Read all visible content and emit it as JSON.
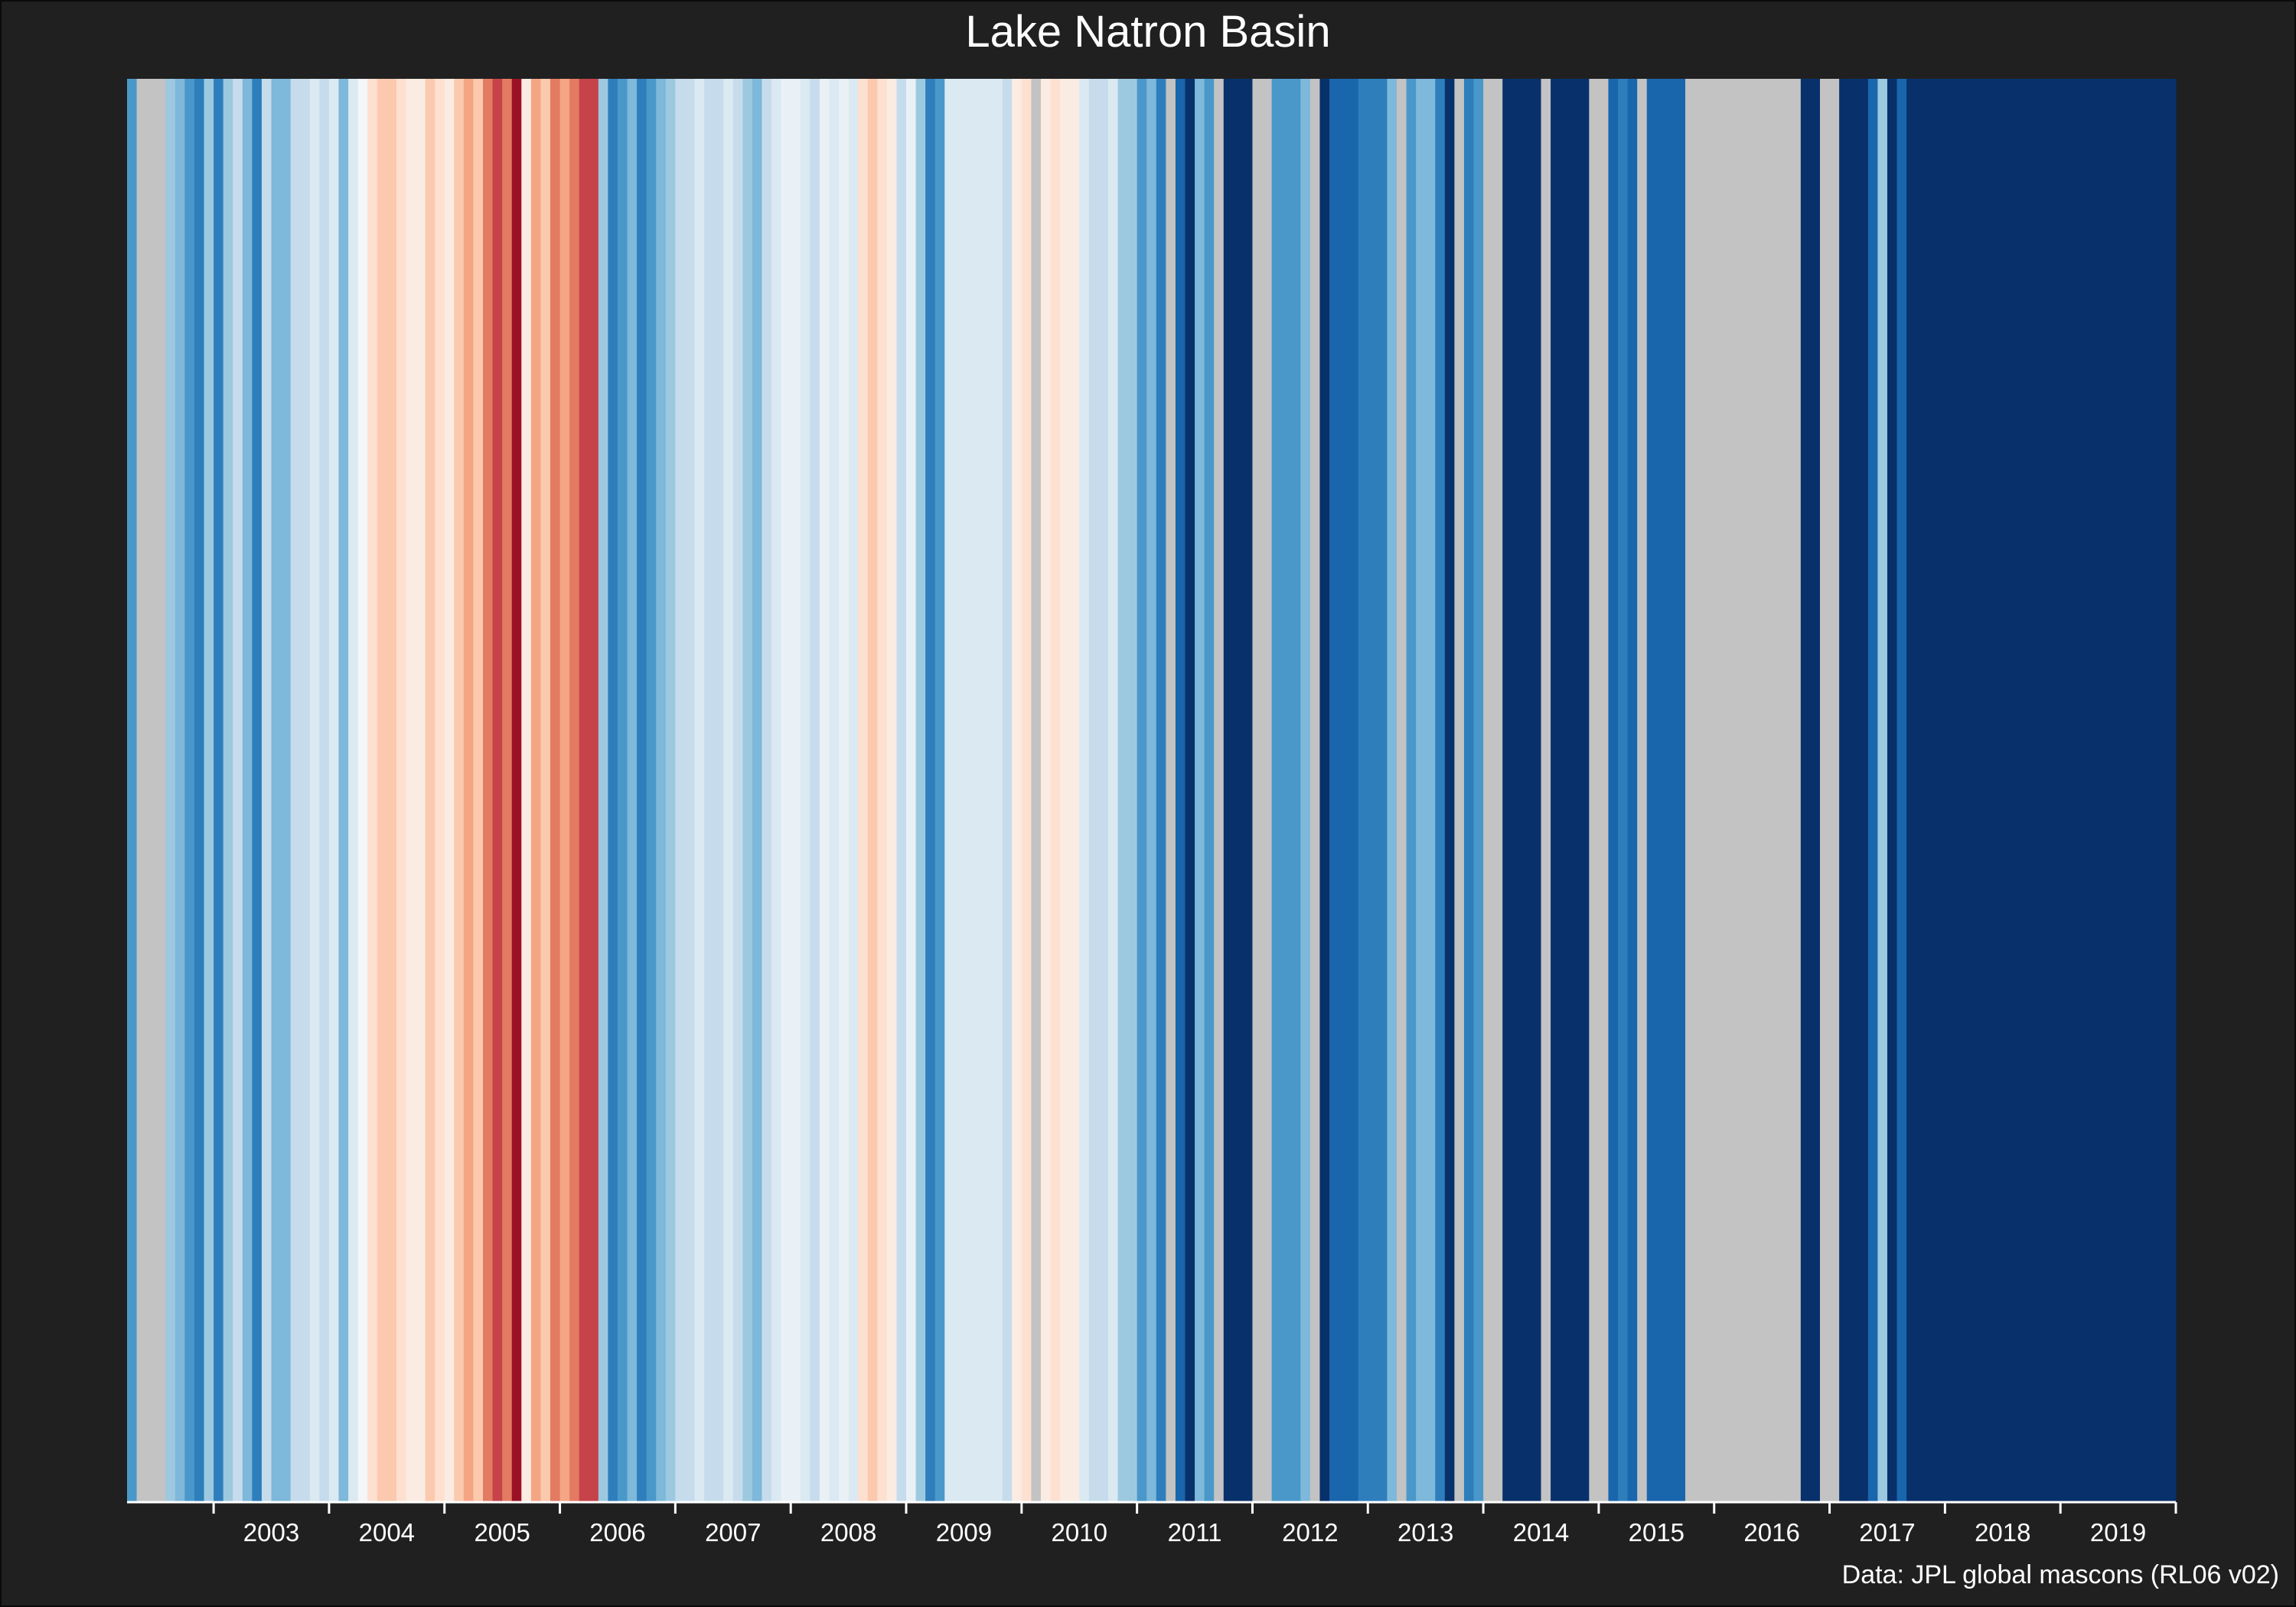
{
  "chart_data": {
    "type": "heatmap",
    "title": "Lake Natron Basin",
    "credit": "Data: JPL global mascons (RL06 v02)",
    "xlabel": "",
    "ylabel": "",
    "x_ticks": [
      "2003",
      "2004",
      "2005",
      "2006",
      "2007",
      "2008",
      "2009",
      "2010",
      "2011",
      "2012",
      "2013",
      "2014",
      "2015",
      "2016",
      "2017",
      "2018",
      "2019"
    ],
    "x_range": [
      "2002-04",
      "2020-01"
    ],
    "grid": false,
    "missing_color": "#c3c3c3",
    "stripes": [
      [
        "2002-04",
        "#4a98c9"
      ],
      [
        "2002-05",
        "#c3c3c3"
      ],
      [
        "2002-06",
        "#c3c3c3"
      ],
      [
        "2002-07",
        "#c3c3c3"
      ],
      [
        "2002-08",
        "#9dc9e0"
      ],
      [
        "2002-09",
        "#7eb8da"
      ],
      [
        "2002-10",
        "#4a98c9"
      ],
      [
        "2002-11",
        "#2e7ebc"
      ],
      [
        "2002-12",
        "#9dc9e0"
      ],
      [
        "2003-01",
        "#2e7ebc"
      ],
      [
        "2003-02",
        "#9dc9e0"
      ],
      [
        "2003-03",
        "#c6dcec"
      ],
      [
        "2003-04",
        "#7eb8da"
      ],
      [
        "2003-05",
        "#2e7ebc"
      ],
      [
        "2003-06",
        "#c6dcec"
      ],
      [
        "2003-07",
        "#7eb8da"
      ],
      [
        "2003-08",
        "#7eb8da"
      ],
      [
        "2003-09",
        "#c6dcec"
      ],
      [
        "2003-10",
        "#c6dcec"
      ],
      [
        "2003-11",
        "#dbe9f2"
      ],
      [
        "2003-12",
        "#c6dcec"
      ],
      [
        "2004-01",
        "#dbe9f2"
      ],
      [
        "2004-02",
        "#7eb8da"
      ],
      [
        "2004-03",
        "#dbe9f2"
      ],
      [
        "2004-04",
        "#f4f6f8"
      ],
      [
        "2004-05",
        "#fde0d0"
      ],
      [
        "2004-06",
        "#fbc9ae"
      ],
      [
        "2004-07",
        "#fbc9ae"
      ],
      [
        "2004-08",
        "#fde0d0"
      ],
      [
        "2004-09",
        "#fbece3"
      ],
      [
        "2004-10",
        "#fbece3"
      ],
      [
        "2004-11",
        "#fbc9ae"
      ],
      [
        "2004-12",
        "#fde0d0"
      ],
      [
        "2005-01",
        "#fbece3"
      ],
      [
        "2005-02",
        "#fbc9ae"
      ],
      [
        "2005-03",
        "#f4a684"
      ],
      [
        "2005-04",
        "#fbc9ae"
      ],
      [
        "2005-05",
        "#e37b62"
      ],
      [
        "2005-06",
        "#c6434a"
      ],
      [
        "2005-07",
        "#e37b62"
      ],
      [
        "2005-08",
        "#9a1125"
      ],
      [
        "2005-09",
        "#fbece3"
      ],
      [
        "2005-10",
        "#f4a684"
      ],
      [
        "2005-11",
        "#fbc9ae"
      ],
      [
        "2005-12",
        "#e37b62"
      ],
      [
        "2006-01",
        "#f4a684"
      ],
      [
        "2006-02",
        "#e37b62"
      ],
      [
        "2006-03",
        "#c6434a"
      ],
      [
        "2006-04",
        "#c6434a"
      ],
      [
        "2006-05",
        "#9dc9e0"
      ],
      [
        "2006-06",
        "#2e7ebc"
      ],
      [
        "2006-07",
        "#4a98c9"
      ],
      [
        "2006-08",
        "#7eb8da"
      ],
      [
        "2006-09",
        "#2e7ebc"
      ],
      [
        "2006-10",
        "#4a98c9"
      ],
      [
        "2006-11",
        "#7eb8da"
      ],
      [
        "2006-12",
        "#9dc9e0"
      ],
      [
        "2007-01",
        "#c6dcec"
      ],
      [
        "2007-02",
        "#c6dcec"
      ],
      [
        "2007-03",
        "#dbe9f2"
      ],
      [
        "2007-04",
        "#c6dcec"
      ],
      [
        "2007-05",
        "#c6dcec"
      ],
      [
        "2007-06",
        "#dbe9f2"
      ],
      [
        "2007-07",
        "#c6dcec"
      ],
      [
        "2007-08",
        "#9dc9e0"
      ],
      [
        "2007-09",
        "#7eb8da"
      ],
      [
        "2007-10",
        "#c6dcec"
      ],
      [
        "2007-11",
        "#dbe9f2"
      ],
      [
        "2007-12",
        "#eaf1f6"
      ],
      [
        "2008-01",
        "#eaf1f6"
      ],
      [
        "2008-02",
        "#dbe9f2"
      ],
      [
        "2008-03",
        "#c6dcec"
      ],
      [
        "2008-04",
        "#eaf1f6"
      ],
      [
        "2008-05",
        "#dbe9f2"
      ],
      [
        "2008-06",
        "#eaf1f6"
      ],
      [
        "2008-07",
        "#dbe9f2"
      ],
      [
        "2008-08",
        "#fde0d0"
      ],
      [
        "2008-09",
        "#fbc9ae"
      ],
      [
        "2008-10",
        "#fde0d0"
      ],
      [
        "2008-11",
        "#fbece3"
      ],
      [
        "2008-12",
        "#c6dcec"
      ],
      [
        "2009-01",
        "#eaf1f6"
      ],
      [
        "2009-02",
        "#9dc9e0"
      ],
      [
        "2009-03",
        "#2e7ebc"
      ],
      [
        "2009-04",
        "#4a98c9"
      ],
      [
        "2009-05",
        "#dbe9f2"
      ],
      [
        "2009-06",
        "#dbe9f2"
      ],
      [
        "2009-07",
        "#dbe9f2"
      ],
      [
        "2009-08",
        "#dbe9f2"
      ],
      [
        "2009-09",
        "#dbe9f2"
      ],
      [
        "2009-10",
        "#dbe9f2"
      ],
      [
        "2009-11",
        "#c6dcec"
      ],
      [
        "2009-12",
        "#fbece3"
      ],
      [
        "2010-01",
        "#fde0d0"
      ],
      [
        "2010-02",
        "#c3c3c3"
      ],
      [
        "2010-03",
        "#fbece3"
      ],
      [
        "2010-04",
        "#fde0d0"
      ],
      [
        "2010-05",
        "#fbece3"
      ],
      [
        "2010-06",
        "#fbece3"
      ],
      [
        "2010-07",
        "#dbe9f2"
      ],
      [
        "2010-08",
        "#c6dcec"
      ],
      [
        "2010-09",
        "#c6dcec"
      ],
      [
        "2010-10",
        "#dbe9f2"
      ],
      [
        "2010-11",
        "#9dc9e0"
      ],
      [
        "2010-12",
        "#9dc9e0"
      ],
      [
        "2011-01",
        "#4a98c9"
      ],
      [
        "2011-02",
        "#7eb8da"
      ],
      [
        "2011-03",
        "#2e7ebc"
      ],
      [
        "2011-04",
        "#c3c3c3"
      ],
      [
        "2011-05",
        "#1966ad"
      ],
      [
        "2011-06",
        "#08306b"
      ],
      [
        "2011-07",
        "#7eb8da"
      ],
      [
        "2011-08",
        "#4a98c9"
      ],
      [
        "2011-09",
        "#c3c3c3"
      ],
      [
        "2011-10",
        "#08306b"
      ],
      [
        "2011-11",
        "#08306b"
      ],
      [
        "2011-12",
        "#08306b"
      ],
      [
        "2012-01",
        "#c3c3c3"
      ],
      [
        "2012-02",
        "#c3c3c3"
      ],
      [
        "2012-03",
        "#4a98c9"
      ],
      [
        "2012-04",
        "#4a98c9"
      ],
      [
        "2012-05",
        "#4a98c9"
      ],
      [
        "2012-06",
        "#7eb8da"
      ],
      [
        "2012-07",
        "#c3c3c3"
      ],
      [
        "2012-08",
        "#08306b"
      ],
      [
        "2012-09",
        "#1966ad"
      ],
      [
        "2012-10",
        "#1966ad"
      ],
      [
        "2012-11",
        "#1966ad"
      ],
      [
        "2012-12",
        "#2e7ebc"
      ],
      [
        "2013-01",
        "#2e7ebc"
      ],
      [
        "2013-02",
        "#2e7ebc"
      ],
      [
        "2013-03",
        "#7eb8da"
      ],
      [
        "2013-04",
        "#c3c3c3"
      ],
      [
        "2013-05",
        "#4a98c9"
      ],
      [
        "2013-06",
        "#7eb8da"
      ],
      [
        "2013-07",
        "#7eb8da"
      ],
      [
        "2013-08",
        "#2e7ebc"
      ],
      [
        "2013-09",
        "#08306b"
      ],
      [
        "2013-10",
        "#c3c3c3"
      ],
      [
        "2013-11",
        "#2e7ebc"
      ],
      [
        "2013-12",
        "#4a98c9"
      ],
      [
        "2014-01",
        "#c3c3c3"
      ],
      [
        "2014-02",
        "#c3c3c3"
      ],
      [
        "2014-03",
        "#08306b"
      ],
      [
        "2014-04",
        "#08306b"
      ],
      [
        "2014-05",
        "#08306b"
      ],
      [
        "2014-06",
        "#08306b"
      ],
      [
        "2014-07",
        "#c3c3c3"
      ],
      [
        "2014-08",
        "#08306b"
      ],
      [
        "2014-09",
        "#08306b"
      ],
      [
        "2014-10",
        "#08306b"
      ],
      [
        "2014-11",
        "#08306b"
      ],
      [
        "2014-12",
        "#c3c3c3"
      ],
      [
        "2015-01",
        "#c3c3c3"
      ],
      [
        "2015-02",
        "#1966ad"
      ],
      [
        "2015-03",
        "#2e7ebc"
      ],
      [
        "2015-04",
        "#1966ad"
      ],
      [
        "2015-05",
        "#c3c3c3"
      ],
      [
        "2015-06",
        "#1966ad"
      ],
      [
        "2015-07",
        "#1966ad"
      ],
      [
        "2015-08",
        "#1966ad"
      ],
      [
        "2015-09",
        "#1966ad"
      ],
      [
        "2015-10",
        "#c3c3c3"
      ],
      [
        "2015-11",
        "#c3c3c3"
      ],
      [
        "2015-12",
        "#c3c3c3"
      ],
      [
        "2016-01",
        "#c3c3c3"
      ],
      [
        "2016-02",
        "#c3c3c3"
      ],
      [
        "2016-03",
        "#c3c3c3"
      ],
      [
        "2016-04",
        "#c3c3c3"
      ],
      [
        "2016-05",
        "#c3c3c3"
      ],
      [
        "2016-06",
        "#c3c3c3"
      ],
      [
        "2016-07",
        "#c3c3c3"
      ],
      [
        "2016-08",
        "#c3c3c3"
      ],
      [
        "2016-09",
        "#c3c3c3"
      ],
      [
        "2016-10",
        "#08306b"
      ],
      [
        "2016-11",
        "#08306b"
      ],
      [
        "2016-12",
        "#c3c3c3"
      ],
      [
        "2017-01",
        "#c3c3c3"
      ],
      [
        "2017-02",
        "#08306b"
      ],
      [
        "2017-03",
        "#08306b"
      ],
      [
        "2017-04",
        "#08306b"
      ],
      [
        "2017-05",
        "#1966ad"
      ],
      [
        "2017-06",
        "#9dc9e0"
      ],
      [
        "2017-07",
        "#08306b"
      ],
      [
        "2017-08",
        "#1966ad"
      ],
      [
        "2017-09",
        "#08306b"
      ],
      [
        "2017-10",
        "#08306b"
      ],
      [
        "2017-11",
        "#08306b"
      ],
      [
        "2017-12",
        "#08306b"
      ],
      [
        "2018-01",
        "#08306b"
      ],
      [
        "2018-02",
        "#08306b"
      ],
      [
        "2018-03",
        "#08306b"
      ],
      [
        "2018-04",
        "#08306b"
      ],
      [
        "2018-05",
        "#08306b"
      ],
      [
        "2018-06",
        "#08306b"
      ],
      [
        "2018-07",
        "#08306b"
      ],
      [
        "2018-08",
        "#08306b"
      ],
      [
        "2018-09",
        "#08306b"
      ],
      [
        "2018-10",
        "#08306b"
      ],
      [
        "2018-11",
        "#08306b"
      ],
      [
        "2018-12",
        "#08306b"
      ],
      [
        "2019-01",
        "#08306b"
      ],
      [
        "2019-02",
        "#08306b"
      ],
      [
        "2019-03",
        "#08306b"
      ],
      [
        "2019-04",
        "#08306b"
      ],
      [
        "2019-05",
        "#08306b"
      ],
      [
        "2019-06",
        "#08306b"
      ],
      [
        "2019-07",
        "#08306b"
      ],
      [
        "2019-08",
        "#08306b"
      ],
      [
        "2019-09",
        "#08306b"
      ],
      [
        "2019-10",
        "#08306b"
      ],
      [
        "2019-11",
        "#08306b"
      ],
      [
        "2019-12",
        "#08306b"
      ]
    ]
  }
}
